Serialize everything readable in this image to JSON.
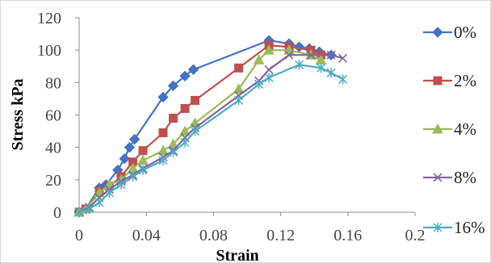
{
  "chart_data": {
    "type": "line",
    "title": "",
    "xlabel": "Strain",
    "ylabel": "Stress kPa",
    "xlim": [
      0,
      0.2
    ],
    "ylim": [
      0,
      120
    ],
    "xticks": [
      0,
      0.04,
      0.08,
      0.12,
      0.16,
      0.2
    ],
    "xtick_labels": [
      "0",
      "0.04",
      "0.08",
      "0.12",
      "0.16",
      "0.2"
    ],
    "yticks": [
      0,
      20,
      40,
      60,
      80,
      100,
      120
    ],
    "ytick_labels": [
      "0",
      "20",
      "40",
      "60",
      "80",
      "100",
      "120"
    ],
    "grid": false,
    "legend_position": "right",
    "series": [
      {
        "name": "0%",
        "color": "#4472C4",
        "marker": "diamond",
        "points": [
          [
            0,
            0
          ],
          [
            0.004,
            2
          ],
          [
            0.012,
            15
          ],
          [
            0.016,
            17
          ],
          [
            0.023,
            26
          ],
          [
            0.027,
            33
          ],
          [
            0.03,
            40
          ],
          [
            0.033,
            45
          ],
          [
            0.05,
            71
          ],
          [
            0.056,
            78
          ],
          [
            0.063,
            84
          ],
          [
            0.068,
            88
          ],
          [
            0.113,
            106
          ],
          [
            0.125,
            104
          ],
          [
            0.131,
            102
          ],
          [
            0.137,
            101
          ],
          [
            0.143,
            99
          ],
          [
            0.15,
            97
          ]
        ]
      },
      {
        "name": "2%",
        "color": "#C0504D",
        "marker": "square",
        "points": [
          [
            0,
            0
          ],
          [
            0.004,
            2
          ],
          [
            0.012,
            13
          ],
          [
            0.018,
            16
          ],
          [
            0.025,
            22
          ],
          [
            0.032,
            31
          ],
          [
            0.038,
            38
          ],
          [
            0.05,
            49
          ],
          [
            0.056,
            58
          ],
          [
            0.063,
            64
          ],
          [
            0.069,
            69
          ],
          [
            0.095,
            89
          ],
          [
            0.113,
            103
          ],
          [
            0.125,
            102
          ],
          [
            0.138,
            100
          ],
          [
            0.144,
            97
          ]
        ]
      },
      {
        "name": "4%",
        "color": "#9BBB59",
        "marker": "triangle",
        "points": [
          [
            0,
            0
          ],
          [
            0.004,
            2
          ],
          [
            0.012,
            12
          ],
          [
            0.018,
            17
          ],
          [
            0.025,
            20
          ],
          [
            0.032,
            27
          ],
          [
            0.038,
            32
          ],
          [
            0.05,
            38
          ],
          [
            0.056,
            42
          ],
          [
            0.063,
            50
          ],
          [
            0.069,
            55
          ],
          [
            0.095,
            76
          ],
          [
            0.107,
            94
          ],
          [
            0.113,
            100
          ],
          [
            0.125,
            100
          ],
          [
            0.138,
            97
          ],
          [
            0.144,
            94
          ]
        ]
      },
      {
        "name": "8%",
        "color": "#8064A2",
        "marker": "x",
        "points": [
          [
            0,
            0
          ],
          [
            0.006,
            3
          ],
          [
            0.012,
            9
          ],
          [
            0.018,
            14
          ],
          [
            0.025,
            19
          ],
          [
            0.032,
            23
          ],
          [
            0.038,
            27
          ],
          [
            0.05,
            34
          ],
          [
            0.056,
            38
          ],
          [
            0.063,
            46
          ],
          [
            0.069,
            52
          ],
          [
            0.095,
            72
          ],
          [
            0.107,
            81
          ],
          [
            0.113,
            88
          ],
          [
            0.125,
            97
          ],
          [
            0.138,
            97
          ],
          [
            0.15,
            97
          ],
          [
            0.157,
            95
          ]
        ]
      },
      {
        "name": "16%",
        "color": "#4BACC6",
        "marker": "star",
        "points": [
          [
            0,
            0
          ],
          [
            0.006,
            2
          ],
          [
            0.012,
            6
          ],
          [
            0.018,
            12
          ],
          [
            0.025,
            17
          ],
          [
            0.032,
            22
          ],
          [
            0.038,
            26
          ],
          [
            0.05,
            32
          ],
          [
            0.056,
            37
          ],
          [
            0.063,
            43
          ],
          [
            0.069,
            50
          ],
          [
            0.095,
            69
          ],
          [
            0.107,
            79
          ],
          [
            0.113,
            83
          ],
          [
            0.131,
            91
          ],
          [
            0.144,
            89
          ],
          [
            0.15,
            86
          ],
          [
            0.157,
            82
          ]
        ]
      }
    ]
  }
}
